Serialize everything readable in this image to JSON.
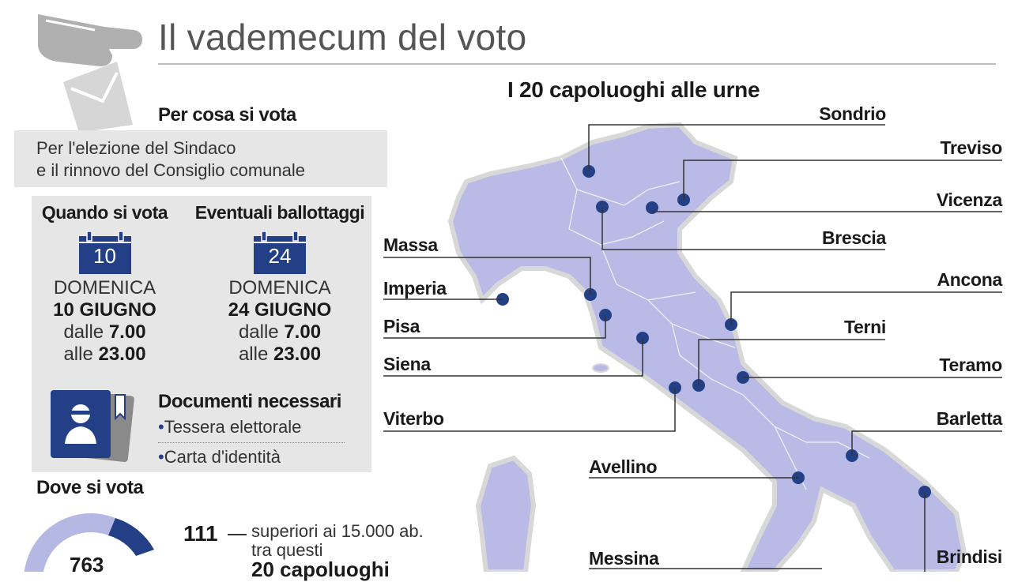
{
  "header": {
    "title": "Il vademecum del voto"
  },
  "what": {
    "heading": "Per cosa si vota",
    "line1": "Per l'elezione del Sindaco",
    "line2": "e il rinnovo del Consiglio comunale"
  },
  "when": {
    "vote": {
      "heading": "Quando si vota",
      "calendar_day": "10",
      "weekday": "DOMENICA",
      "date": "10 GIUGNO",
      "from_prefix": "dalle",
      "from_time": "7.00",
      "to_prefix": "alle",
      "to_time": "23.00"
    },
    "runoff": {
      "heading": "Eventuali ballottaggi",
      "calendar_day": "24",
      "weekday": "DOMENICA",
      "date": "24 GIUGNO",
      "from_prefix": "dalle",
      "from_time": "7.00",
      "to_prefix": "alle",
      "to_time": "23.00"
    }
  },
  "documents": {
    "heading": "Documenti necessari",
    "items": [
      "Tessera elettorale",
      "Carta d'identità"
    ]
  },
  "where": {
    "heading": "Dove si vota",
    "total": "763",
    "large": {
      "count": "111",
      "line1": "superiori ai 15.000 ab.",
      "line2": "tra questi",
      "line3": "20 capoluoghi"
    }
  },
  "map": {
    "title": "I 20 capoluoghi alle urne",
    "cities_right": [
      "Sondrio",
      "Treviso",
      "Vicenza",
      "Brescia",
      "Ancona",
      "Terni",
      "Teramo",
      "Barletta",
      "Brindisi"
    ],
    "cities_left": [
      "Massa",
      "Imperia",
      "Pisa",
      "Siena",
      "Viterbo",
      "Avellino",
      "Messina"
    ]
  },
  "colors": {
    "navy": "#233f86",
    "lilac": "#b4b8e3",
    "map_fill": "#b9bbe6",
    "grey_box": "#e6e6e6"
  }
}
